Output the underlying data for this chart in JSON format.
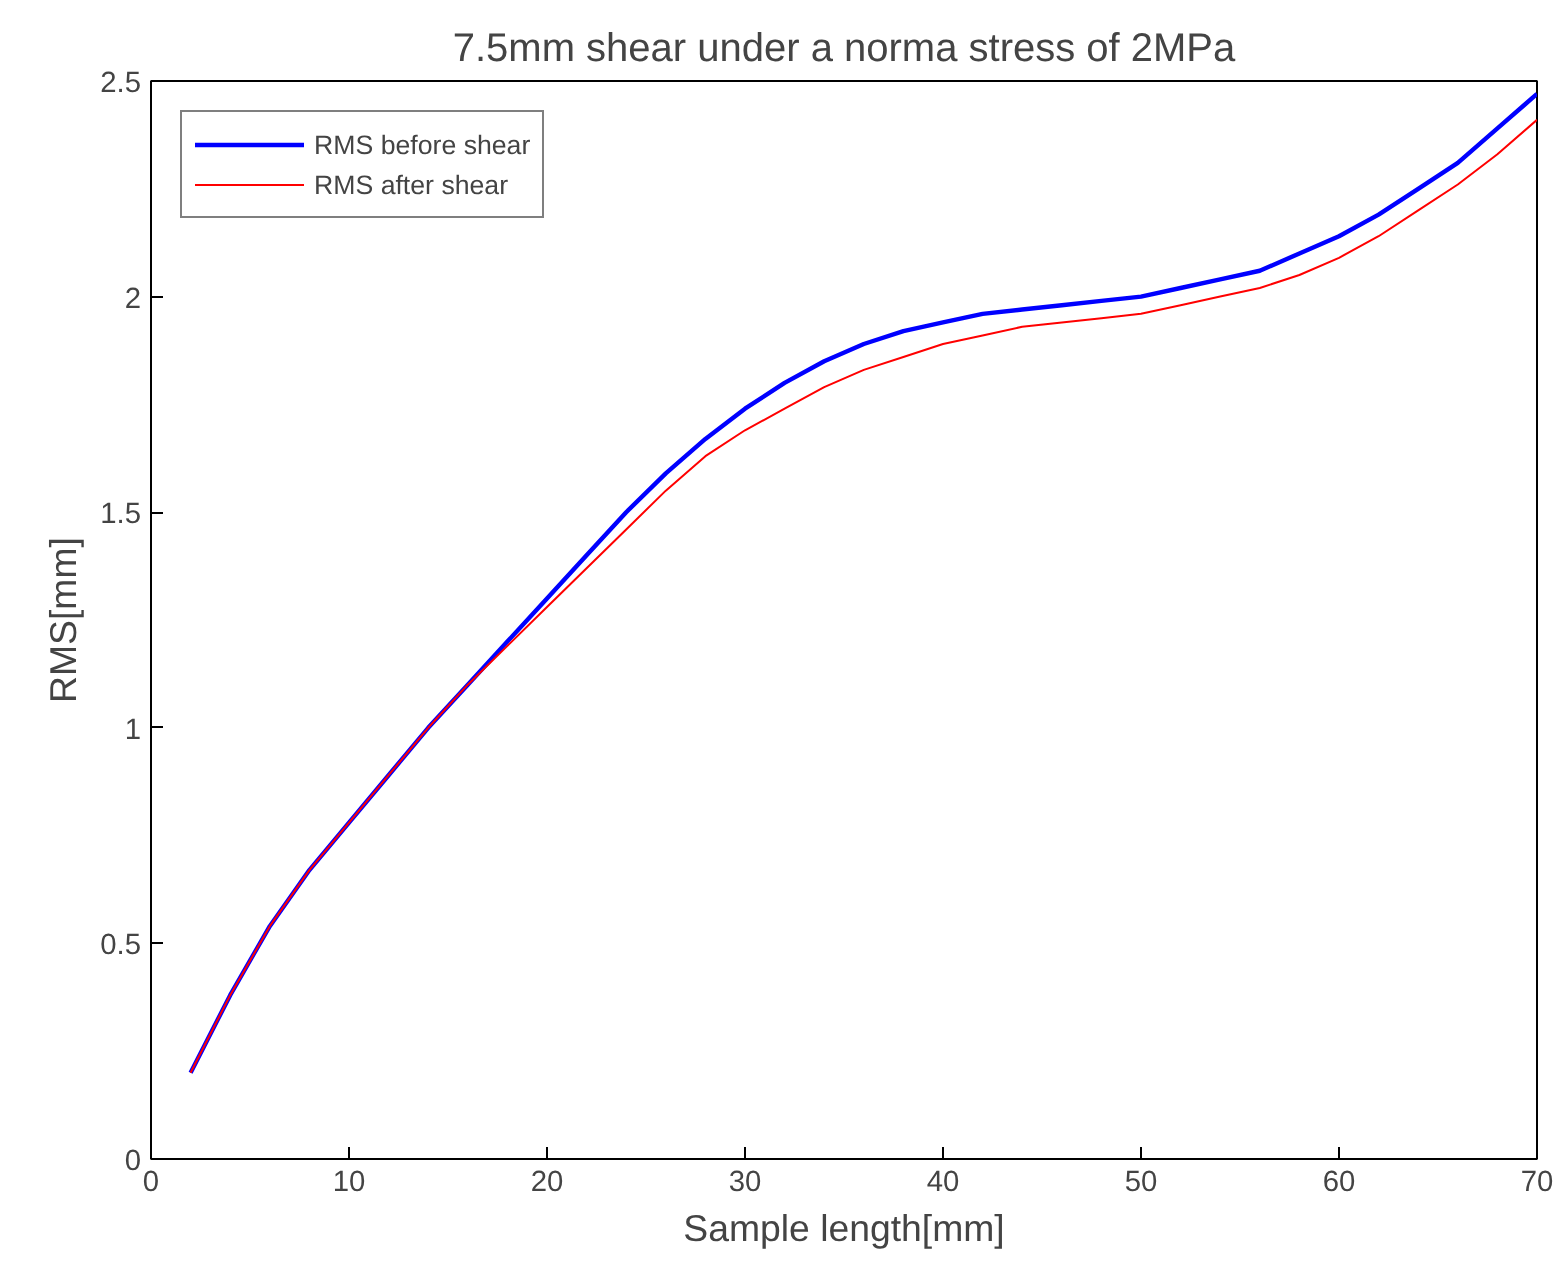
{
  "chart_data": {
    "type": "line",
    "title": "7.5mm shear under a norma stress of 2MPa",
    "xlabel": "Sample length[mm]",
    "ylabel": "RMS[mm]",
    "x": [
      2,
      4,
      6,
      8,
      10,
      12,
      14,
      16,
      18,
      20,
      22,
      24,
      26,
      28,
      30,
      32,
      34,
      36,
      38,
      40,
      42,
      44,
      46,
      48,
      50,
      52,
      54,
      56,
      58,
      60,
      62,
      64,
      66,
      68,
      70
    ],
    "series": [
      {
        "name": "RMS before shear",
        "color": "#0000ff",
        "values": [
          0.2,
          0.38,
          0.54,
          0.67,
          0.78,
          0.89,
          1.0,
          1.1,
          1.2,
          1.3,
          1.4,
          1.5,
          1.59,
          1.67,
          1.74,
          1.8,
          1.85,
          1.89,
          1.92,
          1.94,
          1.96,
          1.97,
          1.98,
          1.99,
          2.0,
          2.02,
          2.04,
          2.06,
          2.1,
          2.14,
          2.19,
          2.25,
          2.31,
          2.39,
          2.47
        ]
      },
      {
        "name": "RMS after shear",
        "color": "#ff0000",
        "values": [
          0.2,
          0.38,
          0.54,
          0.67,
          0.78,
          0.89,
          1.0,
          1.1,
          1.19,
          1.28,
          1.37,
          1.46,
          1.55,
          1.63,
          1.69,
          1.74,
          1.79,
          1.83,
          1.86,
          1.89,
          1.91,
          1.93,
          1.94,
          1.95,
          1.96,
          1.98,
          2.0,
          2.02,
          2.05,
          2.09,
          2.14,
          2.2,
          2.26,
          2.33,
          2.41
        ]
      }
    ],
    "xlim": [
      0,
      70
    ],
    "ylim": [
      0,
      2.5
    ],
    "xticks": [
      0,
      10,
      20,
      30,
      40,
      50,
      60,
      70
    ],
    "yticks": [
      0,
      0.5,
      1,
      1.5,
      2,
      2.5
    ],
    "grid": false,
    "legend": "top left",
    "line_style": "solid",
    "marker": "none"
  }
}
